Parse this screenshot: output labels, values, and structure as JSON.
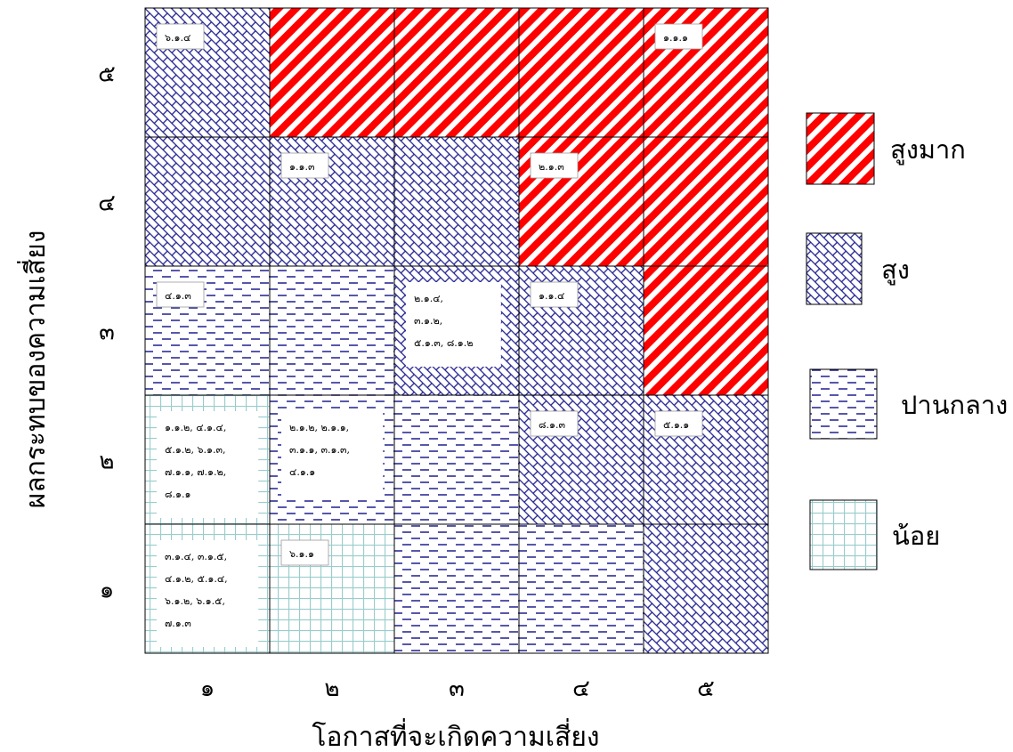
{
  "chart_data": {
    "type": "heatmap",
    "xlabel": "โอกาสที่จะเกิดความเสี่ยง",
    "ylabel": "ผลกระทบของความเสี่ยง",
    "x_ticks": [
      "๑",
      "๒",
      "๓",
      "๔",
      "๕"
    ],
    "y_ticks": [
      "๑",
      "๒",
      "๓",
      "๔",
      "๕"
    ],
    "levels": [
      {
        "key": "very_high",
        "name": "สูงมาก",
        "color": "#ff0000"
      },
      {
        "key": "high",
        "name": "สูง",
        "color": "#1f1f8f"
      },
      {
        "key": "medium",
        "name": "ปานกลาง",
        "color": "#1f1f8f"
      },
      {
        "key": "low",
        "name": "น้อย",
        "color": "#99cccc"
      }
    ],
    "grid": [
      [
        "low",
        "low",
        "medium",
        "medium",
        "high"
      ],
      [
        "low",
        "medium",
        "medium",
        "high",
        "high"
      ],
      [
        "medium",
        "medium",
        "high",
        "high",
        "very_high"
      ],
      [
        "high",
        "high",
        "high",
        "very_high",
        "very_high"
      ],
      [
        "high",
        "very_high",
        "very_high",
        "very_high",
        "very_high"
      ]
    ],
    "cells": [
      {
        "likelihood": 1,
        "impact": 5,
        "text": [
          "๖.๑.๔"
        ]
      },
      {
        "likelihood": 5,
        "impact": 5,
        "text": [
          "๑.๑.๑"
        ]
      },
      {
        "likelihood": 2,
        "impact": 4,
        "text": [
          "๑.๑.๓"
        ]
      },
      {
        "likelihood": 4,
        "impact": 4,
        "text": [
          "๒.๑.๓"
        ]
      },
      {
        "likelihood": 1,
        "impact": 3,
        "text": [
          "๔.๑.๓"
        ]
      },
      {
        "likelihood": 3,
        "impact": 3,
        "text": [
          "๒.๑.๔,",
          "๓.๑.๒,",
          "๕.๑.๓, ๘.๑.๒"
        ]
      },
      {
        "likelihood": 4,
        "impact": 3,
        "text": [
          "๑.๑.๔"
        ]
      },
      {
        "likelihood": 1,
        "impact": 2,
        "text": [
          "๑.๑.๒, ๔.๑.๔,",
          "๕.๑.๒, ๖.๑.๓,",
          "๗.๑.๑, ๗.๑.๒,",
          "๘.๑.๑"
        ]
      },
      {
        "likelihood": 2,
        "impact": 2,
        "text": [
          "๒.๑.๒, ๒.๑.๑,",
          "๓.๑.๑, ๓.๑.๓,",
          "๔.๑.๑"
        ]
      },
      {
        "likelihood": 4,
        "impact": 2,
        "text": [
          "๘.๑.๓"
        ]
      },
      {
        "likelihood": 5,
        "impact": 2,
        "text": [
          "๕.๑.๑"
        ]
      },
      {
        "likelihood": 1,
        "impact": 1,
        "text": [
          "๓.๑.๔, ๓.๑.๕,",
          "๔.๑.๒, ๕.๑.๔,",
          "๖.๑.๒, ๖.๑.๕,",
          "๗.๑.๓"
        ]
      },
      {
        "likelihood": 2,
        "impact": 1,
        "text": [
          "๖.๑.๑"
        ]
      }
    ]
  }
}
